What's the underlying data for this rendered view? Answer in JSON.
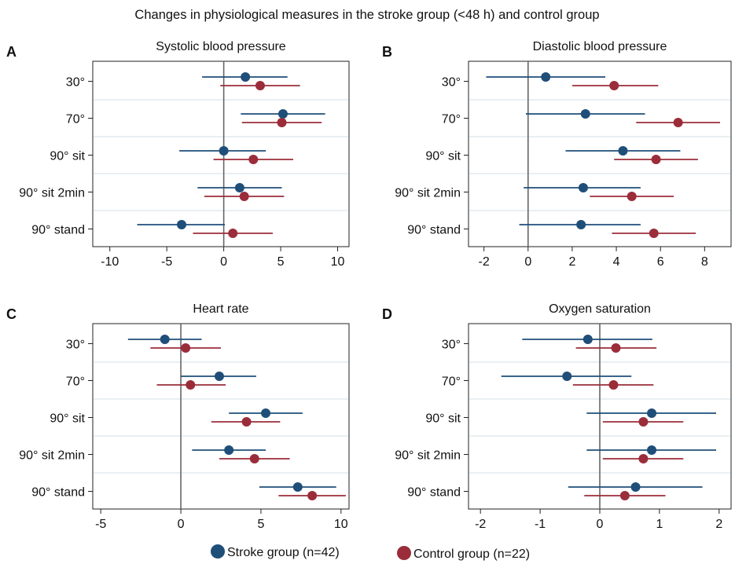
{
  "figure": {
    "title": "Changes in physiological measures in the stroke group (<48 h) and control group",
    "legend": [
      {
        "name": "Stroke group (n=42)",
        "color": "#1f4e79"
      },
      {
        "name": "Control group (n=22)",
        "color": "#9b2d3a"
      }
    ]
  },
  "chart_data": [
    {
      "type": "forest",
      "panel_label": "A",
      "title": "Systolic blood pressure",
      "categories": [
        "30°",
        "70°",
        "90° sit",
        "90° sit 2min",
        "90° stand"
      ],
      "xlim": [
        -11.5,
        11
      ],
      "xticks": [
        -10,
        -5,
        0,
        5,
        10
      ],
      "xticklabels": [
        "-10",
        "-5",
        "0",
        "5",
        "10"
      ],
      "reference_line": 0,
      "series": [
        {
          "name": "Stroke group (n=42)",
          "values": [
            1.9,
            5.2,
            0.0,
            1.4,
            -3.7
          ],
          "ci_low": [
            -1.9,
            1.5,
            -3.9,
            -2.3,
            -7.6
          ],
          "ci_high": [
            5.6,
            8.9,
            3.7,
            5.1,
            0.1
          ]
        },
        {
          "name": "Control group (n=22)",
          "values": [
            3.2,
            5.1,
            2.6,
            1.8,
            0.8
          ],
          "ci_low": [
            -0.3,
            1.6,
            -0.9,
            -1.7,
            -2.7
          ],
          "ci_high": [
            6.7,
            8.6,
            6.1,
            5.3,
            4.3
          ]
        }
      ]
    },
    {
      "type": "forest",
      "panel_label": "B",
      "title": "Diastolic blood pressure",
      "categories": [
        "30°",
        "70°",
        "90° sit",
        "90° sit 2min",
        "90° stand"
      ],
      "xlim": [
        -2.7,
        9.2
      ],
      "xticks": [
        -2,
        0,
        2,
        4,
        6,
        8
      ],
      "xticklabels": [
        "-2",
        "0",
        "2",
        "4",
        "6",
        "8"
      ],
      "reference_line": 0,
      "series": [
        {
          "name": "Stroke group (n=42)",
          "values": [
            0.8,
            2.6,
            4.3,
            2.5,
            2.4
          ],
          "ci_low": [
            -1.9,
            -0.1,
            1.7,
            -0.2,
            -0.4
          ],
          "ci_high": [
            3.5,
            5.3,
            6.9,
            5.1,
            5.1
          ]
        },
        {
          "name": "Control group (n=22)",
          "values": [
            3.9,
            6.8,
            5.8,
            4.7,
            5.7
          ],
          "ci_low": [
            2.0,
            4.9,
            3.9,
            2.8,
            3.8
          ],
          "ci_high": [
            5.9,
            8.7,
            7.7,
            6.6,
            7.6
          ]
        }
      ]
    },
    {
      "type": "forest",
      "panel_label": "C",
      "title": "Heart rate",
      "categories": [
        "30°",
        "70°",
        "90° sit",
        "90° sit 2min",
        "90° stand"
      ],
      "xlim": [
        -5.5,
        10.5
      ],
      "xticks": [
        -5,
        0,
        5,
        10
      ],
      "xticklabels": [
        "-5",
        "0",
        "5",
        "10"
      ],
      "reference_line": 0,
      "series": [
        {
          "name": "Stroke group (n=42)",
          "values": [
            -1.0,
            2.4,
            5.3,
            3.0,
            7.3
          ],
          "ci_low": [
            -3.3,
            0.0,
            3.0,
            0.7,
            4.9
          ],
          "ci_high": [
            1.3,
            4.7,
            7.6,
            5.3,
            9.7
          ]
        },
        {
          "name": "Control group (n=22)",
          "values": [
            0.3,
            0.6,
            4.1,
            4.6,
            8.2
          ],
          "ci_low": [
            -1.9,
            -1.5,
            1.9,
            2.4,
            6.1
          ],
          "ci_high": [
            2.5,
            2.8,
            6.2,
            6.8,
            10.3
          ]
        }
      ]
    },
    {
      "type": "forest",
      "panel_label": "D",
      "title": "Oxygen saturation",
      "categories": [
        "30°",
        "70°",
        "90° sit",
        "90° sit 2min",
        "90° stand"
      ],
      "xlim": [
        -2.2,
        2.2
      ],
      "xticks": [
        -2,
        -1,
        0,
        1,
        2
      ],
      "xticklabels": [
        "-2",
        "-1",
        "0",
        "1",
        "2"
      ],
      "reference_line": 0,
      "series": [
        {
          "name": "Stroke group (n=42)",
          "values": [
            -0.2,
            -0.55,
            0.87,
            0.87,
            0.6
          ],
          "ci_low": [
            -1.3,
            -1.65,
            -0.22,
            -0.22,
            -0.53
          ],
          "ci_high": [
            0.88,
            0.53,
            1.95,
            1.95,
            1.72
          ]
        },
        {
          "name": "Control group (n=22)",
          "values": [
            0.27,
            0.23,
            0.73,
            0.73,
            0.42
          ],
          "ci_low": [
            -0.4,
            -0.45,
            0.05,
            0.05,
            -0.26
          ],
          "ci_high": [
            0.95,
            0.9,
            1.4,
            1.4,
            1.1
          ]
        }
      ]
    }
  ]
}
